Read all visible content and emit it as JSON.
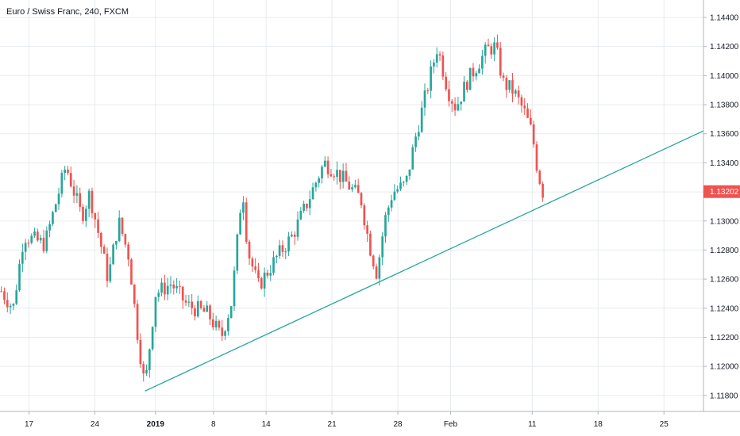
{
  "header": {
    "title": "Euro / Swiss Franc, 240, FXCM"
  },
  "colors": {
    "up": "#26a69a",
    "down": "#ef5350",
    "trendline": "#26a69a",
    "grid": "#e7ebee",
    "axis_line": "#b2b5be",
    "price_tag": "#ef5350"
  },
  "chart_data": {
    "type": "candlestick",
    "symbol": "Euro / Swiss Franc",
    "interval": "240",
    "source": "FXCM",
    "last_price": 1.13202,
    "last_price_label": "1.13202",
    "ylim": [
      1.1169,
      1.1452
    ],
    "xlim": [
      -1.1,
      25.6
    ],
    "grid": true,
    "y_ticks": [
      {
        "value": 1.118,
        "label": "1.11800"
      },
      {
        "value": 1.12,
        "label": "1.12000"
      },
      {
        "value": 1.122,
        "label": "1.12200"
      },
      {
        "value": 1.124,
        "label": "1.12400"
      },
      {
        "value": 1.126,
        "label": "1.12600"
      },
      {
        "value": 1.128,
        "label": "1.12800"
      },
      {
        "value": 1.13,
        "label": "1.13000"
      },
      {
        "value": 1.132,
        "label": "1.13200"
      },
      {
        "value": 1.134,
        "label": "1.13400"
      },
      {
        "value": 1.136,
        "label": "1.13600"
      },
      {
        "value": 1.138,
        "label": "1.13800"
      },
      {
        "value": 1.14,
        "label": "1.14000"
      },
      {
        "value": 1.142,
        "label": "1.14200"
      },
      {
        "value": 1.144,
        "label": "1.14400"
      }
    ],
    "x_ticks": [
      {
        "pos": 0,
        "label": "17",
        "bold": false
      },
      {
        "pos": 2.5,
        "label": "24",
        "bold": false
      },
      {
        "pos": 4.8,
        "label": "2019",
        "bold": true
      },
      {
        "pos": 7,
        "label": "8",
        "bold": false
      },
      {
        "pos": 9,
        "label": "14",
        "bold": false
      },
      {
        "pos": 11.5,
        "label": "21",
        "bold": false
      },
      {
        "pos": 14,
        "label": "28",
        "bold": false
      },
      {
        "pos": 16,
        "label": "Feb",
        "bold": false
      },
      {
        "pos": 19.1,
        "label": "11",
        "bold": false
      },
      {
        "pos": 21.6,
        "label": "18",
        "bold": false
      },
      {
        "pos": 24.1,
        "label": "25",
        "bold": false
      }
    ],
    "trendline": {
      "from": [
        4.4,
        1.1183
      ],
      "to": [
        25.6,
        1.1362
      ]
    },
    "path_points": [
      [
        -1.1,
        1.1253
      ],
      [
        -0.6,
        1.124
      ],
      [
        -0.2,
        1.129
      ],
      [
        0.6,
        1.1284
      ],
      [
        1.4,
        1.1338
      ],
      [
        2.0,
        1.1303
      ],
      [
        2.3,
        1.1319
      ],
      [
        2.7,
        1.1286
      ],
      [
        3.0,
        1.126
      ],
      [
        3.4,
        1.13
      ],
      [
        3.8,
        1.1275
      ],
      [
        4.1,
        1.1225
      ],
      [
        4.4,
        1.1185
      ],
      [
        4.8,
        1.125
      ],
      [
        5.4,
        1.1257
      ],
      [
        6.0,
        1.1242
      ],
      [
        6.8,
        1.1236
      ],
      [
        7.3,
        1.122
      ],
      [
        7.7,
        1.1245
      ],
      [
        8.1,
        1.1325
      ],
      [
        8.3,
        1.128
      ],
      [
        8.7,
        1.1255
      ],
      [
        9.4,
        1.1275
      ],
      [
        10.0,
        1.129
      ],
      [
        10.5,
        1.131
      ],
      [
        11.2,
        1.134
      ],
      [
        11.6,
        1.1335
      ],
      [
        12.1,
        1.1325
      ],
      [
        12.6,
        1.1315
      ],
      [
        12.9,
        1.1285
      ],
      [
        13.2,
        1.1264
      ],
      [
        13.5,
        1.13
      ],
      [
        13.8,
        1.132
      ],
      [
        14.3,
        1.1325
      ],
      [
        14.7,
        1.136
      ],
      [
        15.1,
        1.139
      ],
      [
        15.5,
        1.142
      ],
      [
        15.9,
        1.139
      ],
      [
        16.2,
        1.1378
      ],
      [
        16.6,
        1.1395
      ],
      [
        17.1,
        1.141
      ],
      [
        17.4,
        1.1418
      ],
      [
        17.7,
        1.142
      ],
      [
        18.0,
        1.1395
      ],
      [
        18.4,
        1.1389
      ],
      [
        18.8,
        1.1375
      ],
      [
        19.1,
        1.136
      ],
      [
        19.3,
        1.1335
      ],
      [
        19.5,
        1.132
      ]
    ],
    "candle_count": 180
  }
}
